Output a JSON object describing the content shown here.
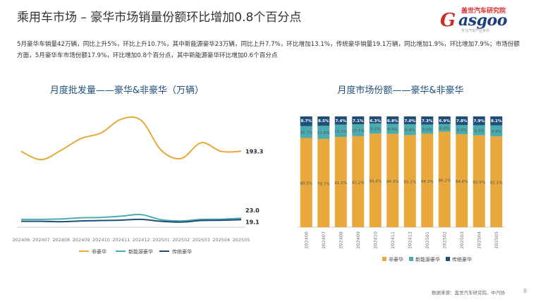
{
  "page": {
    "title": "乘用车市场 – 豪华市场销量份额环比增加0.8个百分点",
    "summary": "5月豪华车销量42万辆，同比上升5%，环比上升10.7%，其中新能源豪华23万辆，同比上升7.7%，环比增加13.1%，传统豪华销量19.1万辆，同比增加1.9%，环比增加7.9%；市场份额方面，5月豪华车市场份额17.9%，环比增加0.8个百分点，其中新能源豪华环比增加0.6个百分点",
    "source": "数据来源：盖世汽车研究院、中汽协",
    "page_number": "8",
    "logo": {
      "cn": "盖世汽车研究院",
      "en": "asgoo",
      "g": "G",
      "sub": "专注汽车产业资讯"
    }
  },
  "colors": {
    "non_lux": "#E9A83C",
    "nev_lux": "#4AABB0",
    "trad_lux": "#1F4E79",
    "axis": "#cccccc",
    "title_blue": "#1f4e79"
  },
  "chart_data": [
    {
      "type": "line",
      "title": "月度批发量——豪华&非豪华（万辆）",
      "categories": [
        "202406",
        "202407",
        "202408",
        "202409",
        "202410",
        "202411",
        "202412",
        "202501",
        "202502",
        "202503",
        "202504",
        "202505"
      ],
      "ylim": [
        0,
        300
      ],
      "series": [
        {
          "name": "非豪华",
          "values": [
            193,
            172,
            196,
            226,
            240,
            275,
            272,
            196,
            175,
            215,
            193,
            193.3
          ]
        },
        {
          "name": "新能源豪华",
          "values": [
            20,
            20,
            21,
            24,
            25,
            28,
            32,
            19,
            16,
            20,
            20.3,
            23.0
          ]
        },
        {
          "name": "传统豪华",
          "values": [
            15,
            15,
            14,
            16,
            17,
            18,
            20,
            15,
            13,
            17,
            17.7,
            19.1
          ]
        }
      ],
      "end_labels": [
        "193.3",
        "23.0",
        "19.1"
      ],
      "legend": "bottom"
    },
    {
      "type": "bar",
      "stacked": true,
      "title": "月度市场份额——豪华&非豪华",
      "categories": [
        "202406",
        "202407",
        "202408",
        "202409",
        "202410",
        "202411",
        "202412",
        "202501",
        "202502",
        "202503",
        "202504",
        "202505"
      ],
      "series": [
        {
          "name": "非豪华",
          "values": [
            80.5,
            79.7,
            81.5,
            82.2,
            84.4,
            84.3,
            83.1,
            84.3,
            86.2,
            84.0,
            82.9,
            82.1
          ]
        },
        {
          "name": "新能源豪华",
          "values": [
            10.7,
            11.8,
            11.1,
            10.7,
            9.2,
            8.9,
            9.8,
            8.4,
            6.8,
            8.3,
            9.1,
            9.8
          ]
        },
        {
          "name": "传统豪华",
          "values": [
            8.7,
            8.5,
            7.4,
            7.1,
            6.3,
            6.8,
            7.0,
            7.3,
            6.9,
            7.8,
            7.9,
            8.1
          ]
        }
      ],
      "labels": {
        "非豪华": [
          "80.5%",
          "79.7%",
          "81.5%",
          "82.2%",
          "84.4%",
          "84.3%",
          "83.1%",
          "84.3%",
          "86.2%",
          "84.0%",
          "82.9%",
          "82.1%"
        ],
        "新能源豪华": [
          "10.7%",
          "11.8%",
          "11.1%",
          "10.7%",
          "9.2%",
          "8.9%",
          "9.8%",
          "8.4%",
          "6.8%",
          "8.3%",
          "9.1%",
          "9.8%"
        ],
        "传统豪华": [
          "8.7%",
          "8.5%",
          "7.4%",
          "7.1%",
          "6.3%",
          "6.8%",
          "7.0%",
          "7.3%",
          "6.9%",
          "7.8%",
          "7.9%",
          "8.1%"
        ]
      },
      "legend": "bottom"
    }
  ]
}
